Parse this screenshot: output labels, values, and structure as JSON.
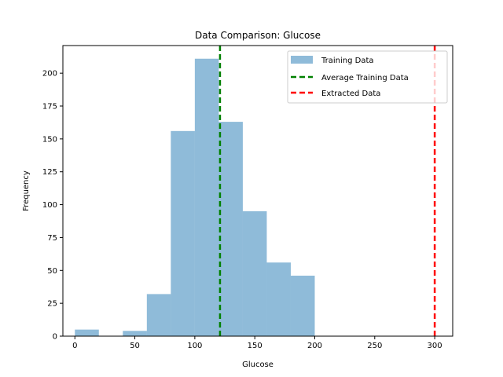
{
  "chart_data": {
    "type": "bar",
    "title": "Data Comparison: Glucose",
    "xlabel": "Glucose",
    "ylabel": "Frequency",
    "xlim": [
      -10,
      315
    ],
    "ylim": [
      0,
      221
    ],
    "xticks": [
      0,
      50,
      100,
      150,
      200,
      250,
      300
    ],
    "yticks": [
      0,
      25,
      50,
      75,
      100,
      125,
      150,
      175,
      200
    ],
    "bins": [
      {
        "x0": 0,
        "x1": 20,
        "count": 5
      },
      {
        "x0": 20,
        "x1": 40,
        "count": 0
      },
      {
        "x0": 40,
        "x1": 60,
        "count": 4
      },
      {
        "x0": 60,
        "x1": 80,
        "count": 32
      },
      {
        "x0": 80,
        "x1": 100,
        "count": 156
      },
      {
        "x0": 100,
        "x1": 120,
        "count": 211
      },
      {
        "x0": 120,
        "x1": 140,
        "count": 163
      },
      {
        "x0": 140,
        "x1": 160,
        "count": 95
      },
      {
        "x0": 160,
        "x1": 180,
        "count": 56
      },
      {
        "x0": 180,
        "x1": 200,
        "count": 46
      }
    ],
    "vlines": [
      {
        "name": "Average Training Data",
        "x": 121,
        "color": "#008000"
      },
      {
        "name": "Extracted Data",
        "x": 300,
        "color": "#ff0000"
      }
    ],
    "legend": {
      "placement": "top-right",
      "entries": [
        "Training Data",
        "Average Training Data",
        "Extracted Data"
      ]
    },
    "grid": false,
    "colors": {
      "bars": "#1f77b4",
      "bar_alpha": 0.5
    }
  }
}
